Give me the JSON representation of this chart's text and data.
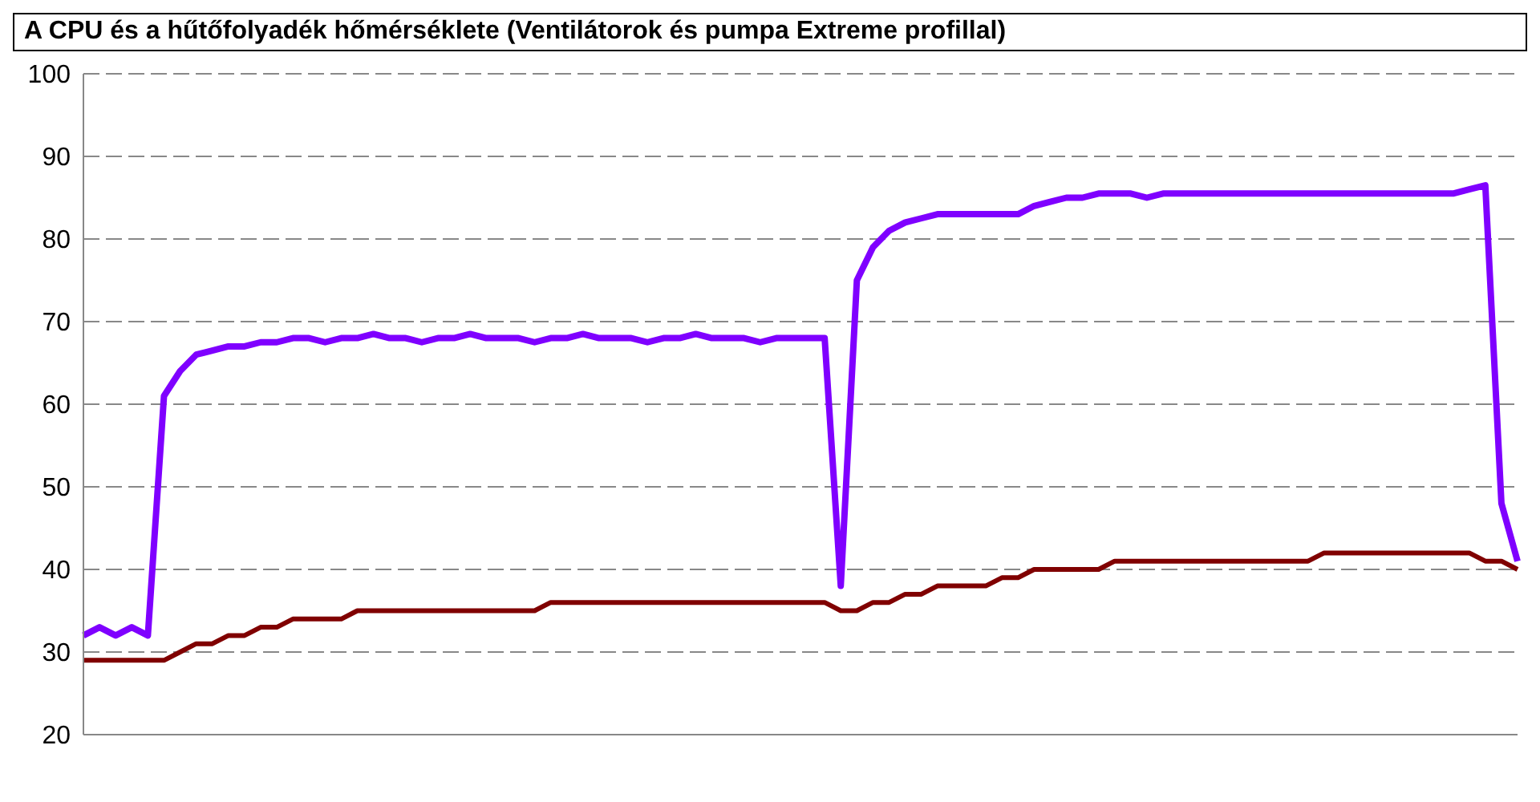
{
  "chart_data": {
    "type": "line",
    "title": "A CPU és a hűtőfolyadék hőmérséklete (Ventilátorok és pumpa Extreme profillal)",
    "categories": [
      null,
      null,
      null,
      null,
      null,
      null,
      null,
      null,
      null,
      null,
      null,
      null,
      null,
      null,
      null,
      null,
      null,
      null,
      null,
      null,
      null,
      null,
      null,
      null,
      null,
      null,
      null,
      null,
      null,
      null,
      null,
      null,
      null,
      null,
      null,
      null,
      null,
      null,
      null,
      null,
      null,
      null,
      null,
      null,
      null,
      null,
      null,
      null,
      null,
      null,
      null,
      null,
      null,
      null,
      null,
      null,
      null,
      null,
      null,
      null,
      null,
      null,
      null,
      null,
      null,
      null,
      null,
      null,
      null,
      null,
      null,
      null,
      null,
      null,
      null,
      null,
      null,
      null,
      null,
      null,
      null,
      null,
      null,
      null,
      null,
      null,
      null,
      null,
      null,
      null
    ],
    "series": [
      {
        "color": "#7f00ff",
        "values": [
          32,
          33,
          32,
          33,
          32,
          61,
          64,
          66,
          66.5,
          67,
          67,
          67.5,
          67.5,
          68,
          68,
          67.5,
          68,
          68,
          68.5,
          68,
          68,
          67.5,
          68,
          68,
          68.5,
          68,
          68,
          68,
          67.5,
          68,
          68,
          68.5,
          68,
          68,
          68,
          67.5,
          68,
          68,
          68.5,
          68,
          68,
          68,
          67.5,
          68,
          68,
          68,
          68,
          38,
          75,
          79,
          81,
          82,
          82.5,
          83,
          83,
          83,
          83,
          83,
          83,
          84,
          84.5,
          85,
          85,
          85.5,
          85.5,
          85.5,
          85,
          85.5,
          85.5,
          85.5,
          85.5,
          85.5,
          85.5,
          85.5,
          85.5,
          85.5,
          85.5,
          85.5,
          85.5,
          85.5,
          85.5,
          85.5,
          85.5,
          85.5,
          85.5,
          85.5,
          86,
          86.5,
          48,
          41
        ]
      },
      {
        "color": "#800000",
        "values": [
          29,
          29,
          29,
          29,
          29,
          29,
          30,
          31,
          31,
          32,
          32,
          33,
          33,
          34,
          34,
          34,
          34,
          35,
          35,
          35,
          35,
          35,
          35,
          35,
          35,
          35,
          35,
          35,
          35,
          36,
          36,
          36,
          36,
          36,
          36,
          36,
          36,
          36,
          36,
          36,
          36,
          36,
          36,
          36,
          36,
          36,
          36,
          35,
          35,
          36,
          36,
          37,
          37,
          38,
          38,
          38,
          38,
          39,
          39,
          40,
          40,
          40,
          40,
          40,
          41,
          41,
          41,
          41,
          41,
          41,
          41,
          41,
          41,
          41,
          41,
          41,
          41,
          42,
          42,
          42,
          42,
          42,
          42,
          42,
          42,
          42,
          42,
          41,
          41,
          40
        ]
      }
    ],
    "ylim": [
      20,
      100
    ],
    "yticks": [
      20,
      30,
      40,
      50,
      60,
      70,
      80,
      90,
      100
    ],
    "grid": "y",
    "marker": "none",
    "line_style": "solid"
  }
}
